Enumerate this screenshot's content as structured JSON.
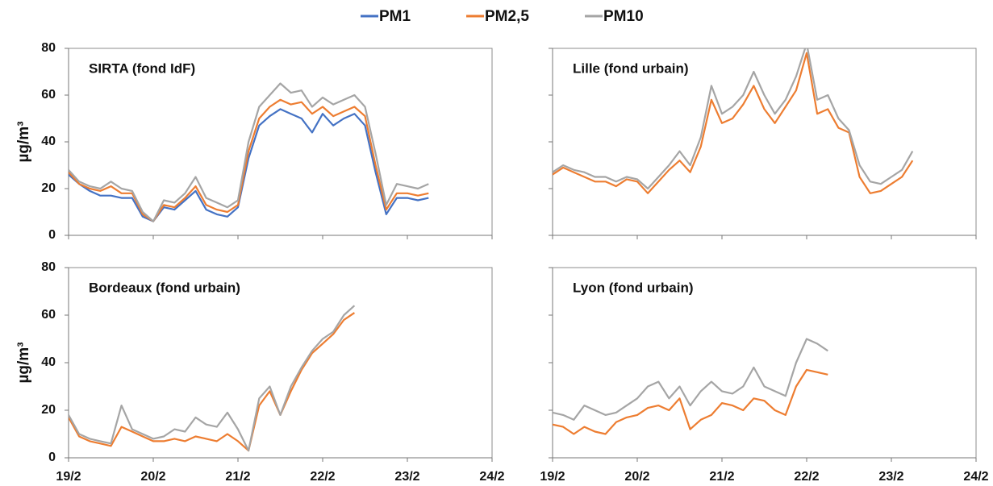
{
  "chart_data": [
    {
      "type": "line",
      "title": "SIRTA (fond IdF)",
      "ylabel": "µg/m³",
      "x": [
        0,
        0.125,
        0.25,
        0.375,
        0.5,
        0.625,
        0.75,
        0.875,
        1,
        1.125,
        1.25,
        1.375,
        1.5,
        1.625,
        1.75,
        1.875,
        2,
        2.125,
        2.25,
        2.375,
        2.5,
        2.625,
        2.75,
        2.875,
        3,
        3.125,
        3.25,
        3.375,
        3.5,
        3.625,
        3.75,
        3.875,
        4,
        4.125,
        4.25
      ],
      "xlim": [
        0,
        5
      ],
      "xticks": [
        0,
        1,
        2,
        3,
        4,
        5
      ],
      "xtick_labels": false,
      "ylim": [
        0,
        80
      ],
      "yticks": [
        0,
        20,
        40,
        60,
        80
      ],
      "ytick_labels": true,
      "series": [
        {
          "name": "PM1",
          "color": "#4472c4",
          "values": [
            26,
            22,
            19,
            17,
            17,
            16,
            16,
            8,
            6,
            12,
            11,
            15,
            19,
            11,
            9,
            8,
            12,
            33,
            47,
            51,
            54,
            52,
            50,
            44,
            52,
            47,
            50,
            52,
            47,
            27,
            9,
            16,
            16,
            15,
            16
          ]
        },
        {
          "name": "PM2,5",
          "color": "#ed7d31",
          "values": [
            27,
            22,
            20,
            19,
            21,
            18,
            18,
            9,
            6,
            13,
            12,
            16,
            21,
            13,
            11,
            10,
            13,
            36,
            50,
            55,
            58,
            56,
            57,
            52,
            55,
            51,
            53,
            55,
            51,
            30,
            11,
            18,
            18,
            17,
            18
          ]
        },
        {
          "name": "PM10",
          "color": "#a5a5a5",
          "values": [
            28,
            23,
            21,
            20,
            23,
            20,
            19,
            10,
            6,
            15,
            14,
            18,
            25,
            16,
            14,
            12,
            15,
            40,
            55,
            60,
            65,
            61,
            62,
            55,
            59,
            56,
            58,
            60,
            55,
            35,
            13,
            22,
            21,
            20,
            22
          ]
        }
      ]
    },
    {
      "type": "line",
      "title": "Lille (fond urbain)",
      "x": [
        0,
        0.125,
        0.25,
        0.375,
        0.5,
        0.625,
        0.75,
        0.875,
        1,
        1.125,
        1.25,
        1.375,
        1.5,
        1.625,
        1.75,
        1.875,
        2,
        2.125,
        2.25,
        2.375,
        2.5,
        2.625,
        2.75,
        2.875,
        3,
        3.125,
        3.25,
        3.375,
        3.5,
        3.625,
        3.75,
        3.875,
        4,
        4.125,
        4.25
      ],
      "xlim": [
        0,
        5
      ],
      "xticks": [
        0,
        1,
        2,
        3,
        4,
        5
      ],
      "xtick_labels": false,
      "ylim": [
        0,
        80
      ],
      "yticks": [
        0,
        20,
        40,
        60,
        80
      ],
      "ytick_labels": false,
      "series": [
        {
          "name": "PM2,5",
          "color": "#ed7d31",
          "values": [
            26,
            29,
            27,
            25,
            23,
            23,
            21,
            24,
            23,
            18,
            23,
            28,
            32,
            27,
            38,
            58,
            48,
            50,
            56,
            64,
            54,
            48,
            55,
            62,
            78,
            52,
            54,
            46,
            44,
            25,
            18,
            19,
            22,
            25,
            32
          ]
        },
        {
          "name": "PM10",
          "color": "#a5a5a5",
          "values": [
            27,
            30,
            28,
            27,
            25,
            25,
            23,
            25,
            24,
            20,
            25,
            30,
            36,
            30,
            42,
            64,
            52,
            55,
            60,
            70,
            60,
            52,
            58,
            68,
            82,
            58,
            60,
            50,
            45,
            30,
            23,
            22,
            25,
            28,
            36
          ]
        }
      ]
    },
    {
      "type": "line",
      "title": "Bordeaux (fond urbain)",
      "ylabel": "µg/m³",
      "x": [
        0,
        0.125,
        0.25,
        0.375,
        0.5,
        0.625,
        0.75,
        0.875,
        1,
        1.125,
        1.25,
        1.375,
        1.5,
        1.625,
        1.75,
        1.875,
        2,
        2.125,
        2.25,
        2.375,
        2.5,
        2.625,
        2.75,
        2.875,
        3,
        3.125,
        3.25,
        3.375
      ],
      "xlim": [
        0,
        5
      ],
      "xticks": [
        {
          "value": 0,
          "label": "19/2"
        },
        {
          "value": 1,
          "label": "20/2"
        },
        {
          "value": 2,
          "label": "21/2"
        },
        {
          "value": 3,
          "label": "22/2"
        },
        {
          "value": 4,
          "label": "23/2"
        },
        {
          "value": 5,
          "label": "24/2"
        }
      ],
      "xtick_labels": true,
      "ylim": [
        0,
        80
      ],
      "yticks": [
        0,
        20,
        40,
        60,
        80
      ],
      "ytick_labels": true,
      "series": [
        {
          "name": "PM2,5",
          "color": "#ed7d31",
          "values": [
            17,
            9,
            7,
            6,
            5,
            13,
            11,
            9,
            7,
            7,
            8,
            7,
            9,
            8,
            7,
            10,
            7,
            3,
            22,
            28,
            18,
            28,
            37,
            44,
            48,
            52,
            58,
            61
          ]
        },
        {
          "name": "PM10",
          "color": "#a5a5a5",
          "values": [
            18,
            10,
            8,
            7,
            6,
            22,
            12,
            10,
            8,
            9,
            12,
            11,
            17,
            14,
            13,
            19,
            12,
            3,
            25,
            30,
            18,
            30,
            38,
            45,
            50,
            53,
            60,
            64
          ]
        }
      ]
    },
    {
      "type": "line",
      "title": "Lyon (fond urbain)",
      "x": [
        0,
        0.125,
        0.25,
        0.375,
        0.5,
        0.625,
        0.75,
        0.875,
        1,
        1.125,
        1.25,
        1.375,
        1.5,
        1.625,
        1.75,
        1.875,
        2,
        2.125,
        2.25,
        2.375,
        2.5,
        2.625,
        2.75,
        2.875,
        3,
        3.125,
        3.25
      ],
      "xlim": [
        0,
        5
      ],
      "xticks": [
        {
          "value": 0,
          "label": "19/2"
        },
        {
          "value": 1,
          "label": "20/2"
        },
        {
          "value": 2,
          "label": "21/2"
        },
        {
          "value": 3,
          "label": "22/2"
        },
        {
          "value": 4,
          "label": "23/2"
        },
        {
          "value": 5,
          "label": "24/2"
        }
      ],
      "xtick_labels": true,
      "ylim": [
        0,
        80
      ],
      "yticks": [
        0,
        20,
        40,
        60,
        80
      ],
      "ytick_labels": false,
      "series": [
        {
          "name": "PM2,5",
          "color": "#ed7d31",
          "values": [
            14,
            13,
            10,
            13,
            11,
            10,
            15,
            17,
            18,
            21,
            22,
            20,
            25,
            12,
            16,
            18,
            23,
            22,
            20,
            25,
            24,
            20,
            18,
            30,
            37,
            36,
            35
          ]
        },
        {
          "name": "PM10",
          "color": "#a5a5a5",
          "values": [
            19,
            18,
            16,
            22,
            20,
            18,
            19,
            22,
            25,
            30,
            32,
            25,
            30,
            22,
            28,
            32,
            28,
            27,
            30,
            38,
            30,
            28,
            26,
            40,
            50,
            48,
            45
          ]
        }
      ]
    }
  ]
}
